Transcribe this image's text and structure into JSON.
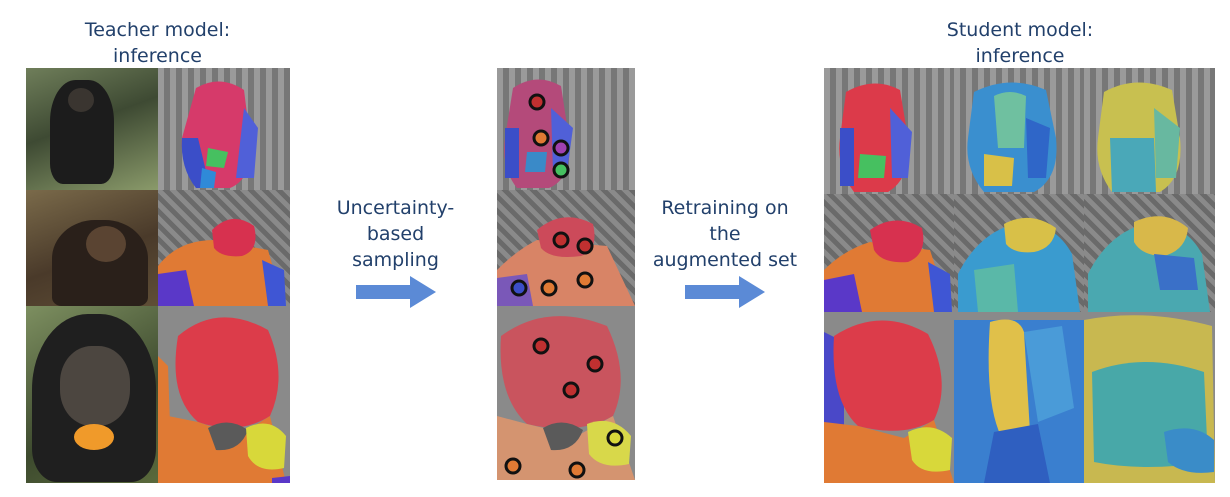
{
  "captions": {
    "teacher": "Teacher model:\ninference",
    "student": "Student model:\ninference",
    "step1": "Uncertainty-\nbased\nsampling",
    "step2": "Retraining on\nthe\naugmented set"
  },
  "icons": {
    "arrow1": "right-arrow-icon",
    "arrow2": "right-arrow-icon"
  },
  "colors": {
    "arrow": "#5b8ad6",
    "text": "#22406b",
    "marker_stroke": "#111111"
  }
}
